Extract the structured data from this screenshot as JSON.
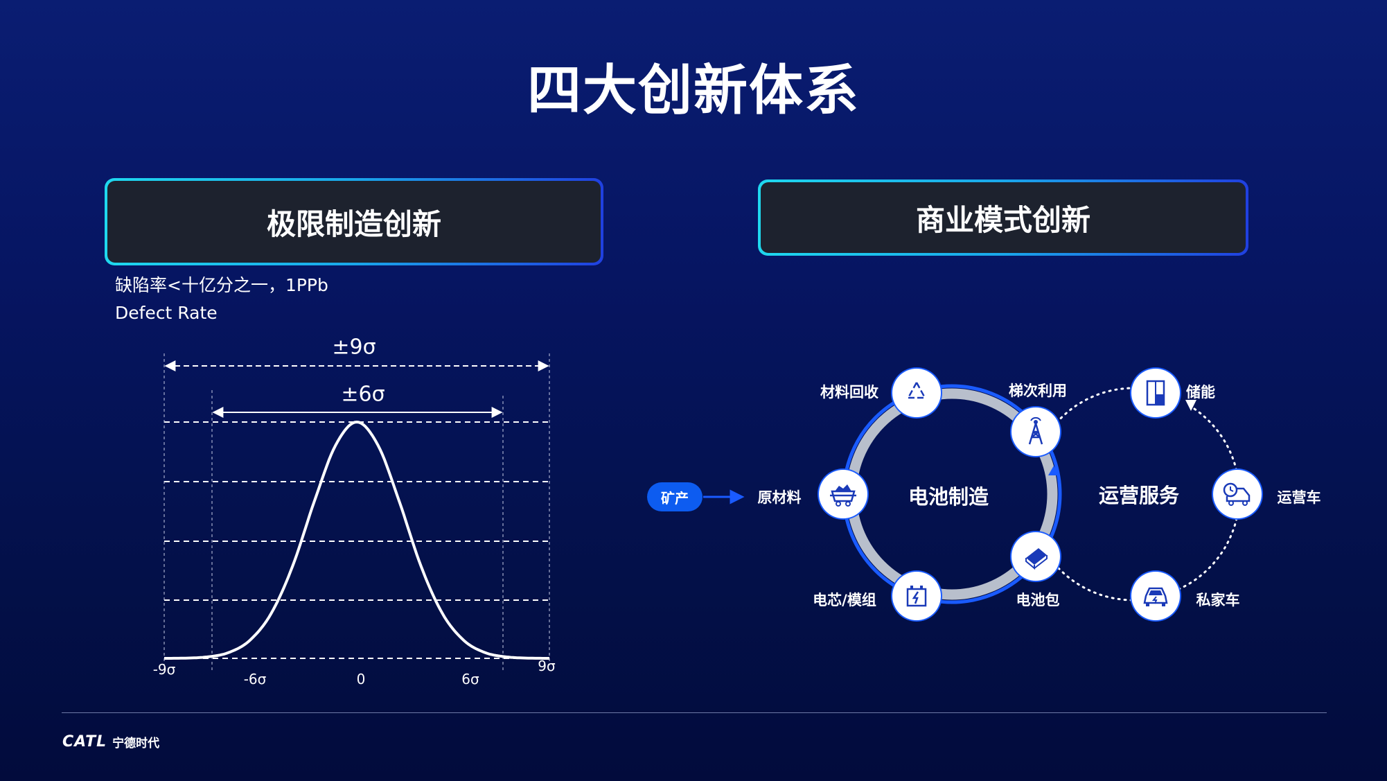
{
  "title": "四大创新体系",
  "left_panel": {
    "heading": "极限制造创新",
    "subtitle_cn": "缺陷率<十亿分之一，1PPb",
    "subtitle_en": "Defect Rate"
  },
  "right_panel": {
    "heading": "商业模式创新"
  },
  "chart_data": {
    "type": "line",
    "title": "",
    "xlabel": "",
    "ylabel": "",
    "xlim": [
      -9,
      9
    ],
    "ylim": [
      0,
      1
    ],
    "grid": true,
    "x_tick_labels": [
      "-9σ",
      "-6σ",
      "0",
      "6σ",
      "9σ"
    ],
    "annotations": [
      "±9σ",
      "±6σ"
    ],
    "x": [
      -9,
      -8,
      -7,
      -6,
      -5,
      -4,
      -3,
      -2,
      -1,
      0,
      1,
      2,
      3,
      4,
      5,
      6,
      7,
      8,
      9
    ],
    "values": [
      0,
      0.001,
      0.006,
      0.024,
      0.076,
      0.19,
      0.39,
      0.66,
      0.9,
      1,
      0.9,
      0.66,
      0.39,
      0.19,
      0.076,
      0.024,
      0.006,
      0.001,
      0
    ],
    "color": "#ffffff"
  },
  "diagram": {
    "source": "矿产",
    "center_left": "电池制造",
    "center_right": "运营服务",
    "nodes": [
      {
        "label": "材料回收",
        "icon": "recycle-icon"
      },
      {
        "label": "梯次利用",
        "icon": "signal-tower-icon"
      },
      {
        "label": "原材料",
        "icon": "mine-cart-icon"
      },
      {
        "label": "电池包",
        "icon": "battery-pack-icon"
      },
      {
        "label": "电芯/模组",
        "icon": "battery-cell-icon"
      },
      {
        "label": "储能",
        "icon": "energy-storage-icon"
      },
      {
        "label": "运营车",
        "icon": "delivery-truck-icon"
      },
      {
        "label": "私家车",
        "icon": "car-icon"
      }
    ],
    "colors": {
      "accent": "#1a5bff",
      "ring": "#b8bfcc",
      "pill": "#0d5cf0"
    }
  },
  "footer": {
    "logo_en": "CATL",
    "logo_cn": "宁德时代"
  }
}
